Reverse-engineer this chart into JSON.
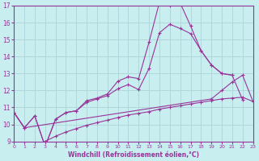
{
  "xlabel": "Windchill (Refroidissement éolien,°C)",
  "bg_color": "#c8eef0",
  "line_color": "#993399",
  "grid_color": "#b0d8dc",
  "xlim": [
    0,
    23
  ],
  "ylim": [
    9,
    17
  ],
  "xtick_labels": [
    "0",
    "1",
    "2",
    "3",
    "4",
    "5",
    "6",
    "7",
    "8",
    "9",
    "10",
    "11",
    "12",
    "13",
    "14",
    "15",
    "16",
    "17",
    "18",
    "19",
    "20",
    "21",
    "22",
    "23"
  ],
  "ytick_labels": [
    "9",
    "10",
    "11",
    "12",
    "13",
    "14",
    "15",
    "16",
    "17"
  ],
  "yticks": [
    9,
    10,
    11,
    12,
    13,
    14,
    15,
    16,
    17
  ],
  "line1_x": [
    0,
    1,
    2,
    3,
    4,
    5,
    6,
    7,
    8,
    9,
    10,
    11,
    12,
    13,
    14,
    15,
    16,
    17,
    18,
    19,
    20,
    21
  ],
  "line1_y": [
    10.7,
    9.8,
    10.5,
    8.7,
    10.3,
    10.7,
    10.8,
    11.4,
    11.55,
    11.8,
    12.55,
    12.8,
    12.7,
    14.85,
    17.2,
    17.0,
    17.15,
    15.8,
    14.35,
    13.5,
    13.0,
    12.9
  ],
  "line2_x": [
    0,
    1,
    2,
    3,
    4,
    5,
    6,
    7,
    8,
    9,
    10,
    11,
    12,
    13,
    14,
    15,
    16,
    17,
    18,
    19,
    20,
    21,
    22
  ],
  "line2_y": [
    10.7,
    9.8,
    10.5,
    8.7,
    10.3,
    10.7,
    10.8,
    11.3,
    11.5,
    11.7,
    12.1,
    12.35,
    12.05,
    13.3,
    15.4,
    15.9,
    15.65,
    15.35,
    14.35,
    13.5,
    13.0,
    12.9,
    11.45
  ],
  "line3_x": [
    0,
    1,
    19,
    20,
    21,
    22,
    23
  ],
  "line3_y": [
    10.7,
    9.8,
    11.5,
    12.0,
    12.5,
    12.9,
    11.35
  ],
  "line4_x": [
    2,
    3,
    4,
    5,
    6,
    7,
    8,
    9,
    10,
    11,
    12,
    13,
    14,
    15,
    16,
    17,
    18,
    19,
    20,
    21,
    22,
    23
  ],
  "line4_y": [
    8.7,
    9.0,
    9.3,
    9.55,
    9.75,
    9.95,
    10.1,
    10.25,
    10.4,
    10.55,
    10.65,
    10.75,
    10.9,
    11.0,
    11.1,
    11.2,
    11.3,
    11.4,
    11.5,
    11.55,
    11.6,
    11.35
  ]
}
